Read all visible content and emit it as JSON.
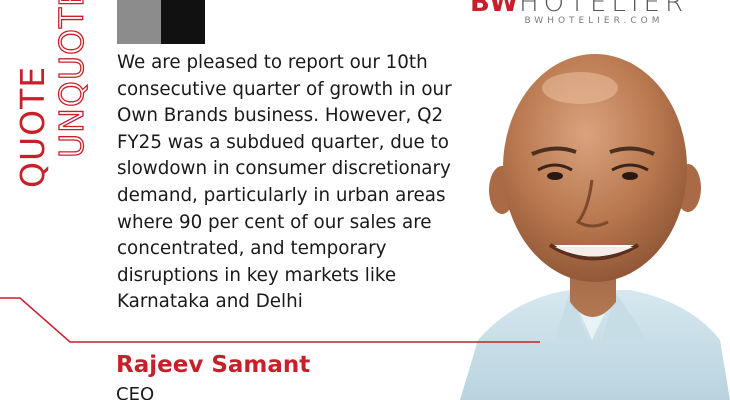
{
  "label": {
    "quote": "QUOTE",
    "unquote": "UNQUOTE"
  },
  "brand": {
    "name_bold": "BW",
    "name_light": "HOTELIER",
    "url": "BWHOTELIER.COM"
  },
  "quote": {
    "text": "We are pleased to report our 10th\nconsecutive quarter of growth in our\nOwn Brands business. However, Q2\nFY25 was a subdued quarter, due to\nslowdown in consumer discretionary\ndemand, particularly in urban areas\nwhere 90 per cent of our sales are\nconcentrated, and temporary\ndisruptions in key markets like\nKarnataka and Delhi"
  },
  "author": {
    "name": "Rajeev Samant",
    "title": "CEO"
  },
  "colors": {
    "accent": "#c8202a",
    "text": "#1a1a1a",
    "block_grey": "#8c8c8c",
    "block_black": "#111111"
  }
}
